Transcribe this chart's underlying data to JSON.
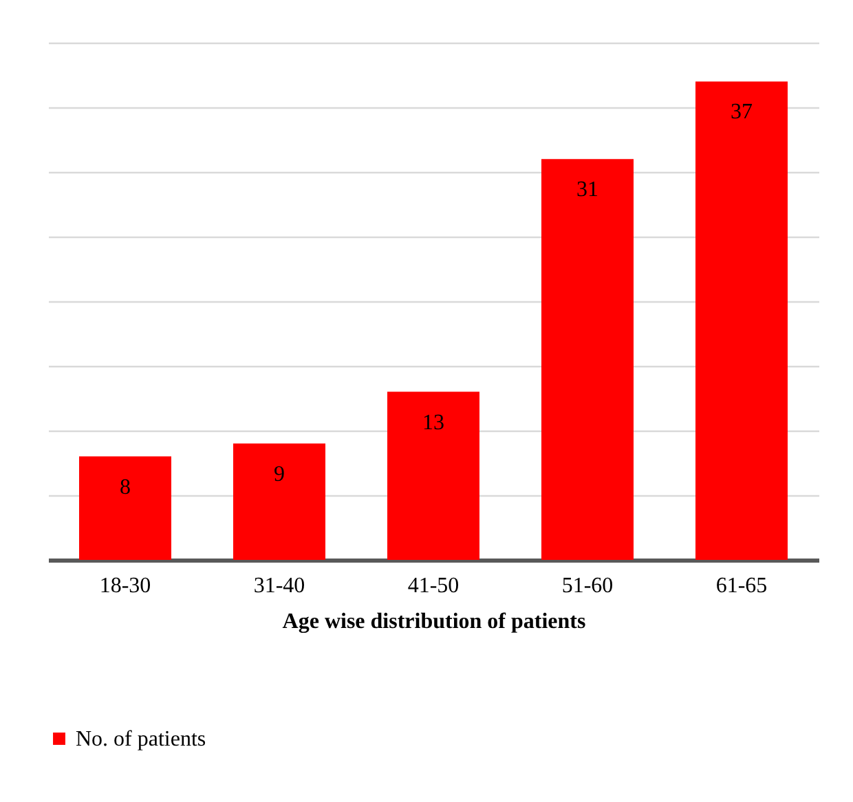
{
  "chart_data": {
    "type": "bar",
    "xlabel": "Age wise distribution of patients",
    "categories": [
      "18-30",
      "31-40",
      "41-50",
      "51-60",
      "61-65"
    ],
    "series": [
      {
        "name": "No. of patients",
        "color": "#ff0000",
        "values": [
          8,
          9,
          13,
          31,
          37
        ]
      }
    ],
    "ylim": [
      0,
      40
    ],
    "yticks": [
      {
        "value": 0,
        "label": null
      },
      {
        "value": 5,
        "label": null
      },
      {
        "value": 10,
        "label": null
      },
      {
        "value": 15,
        "label": null
      },
      {
        "value": 20,
        "label": null
      },
      {
        "value": 25,
        "label": null
      },
      {
        "value": 30,
        "label": null
      },
      {
        "value": 35,
        "label": null
      },
      {
        "value": 40,
        "label": null
      }
    ],
    "grid": "y",
    "tick_labels": "x",
    "data_labels": true,
    "legend": "bottom"
  }
}
